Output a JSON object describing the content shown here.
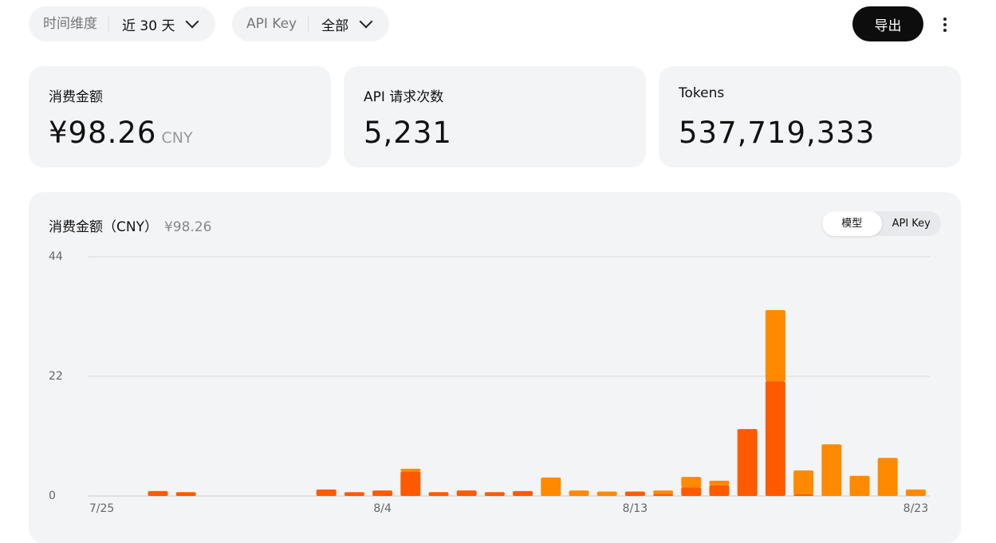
{
  "header": {
    "time_label": "时间维度",
    "time_value": "近 30 天",
    "key_label": "API Key",
    "key_value": "全部",
    "export": "导出"
  },
  "stats": [
    {
      "label": "消费金额",
      "value": "¥98.26",
      "unit": "CNY"
    },
    {
      "label": "API 请求次数",
      "value": "5,231"
    },
    {
      "label": "Tokens",
      "value": "537,719,333"
    }
  ],
  "toggle": [
    "模型",
    "API Key"
  ],
  "chart_data": {
    "type": "stacked-bar",
    "title": "消费金额（CNY）",
    "subtitle": "¥98.26",
    "categories": [
      "7/25",
      null,
      null,
      null,
      null,
      null,
      null,
      null,
      null,
      null,
      "8/4",
      null,
      null,
      null,
      null,
      null,
      null,
      null,
      null,
      "8/13",
      null,
      null,
      null,
      null,
      null,
      null,
      null,
      null,
      null,
      "8/23"
    ],
    "series": [
      {
        "color": "#ff5a00",
        "values": [
          0,
          0,
          0.9,
          0.7,
          0,
          0,
          0,
          0,
          1.2,
          0.7,
          1.0,
          4.5,
          0.7,
          1.0,
          0.7,
          0.9,
          0,
          0,
          0,
          0.8,
          0.4,
          1.6,
          2.0,
          12.3,
          21.1,
          0.3,
          0,
          0,
          0,
          0
        ]
      },
      {
        "color": "#ff8a00",
        "values": [
          0,
          0,
          0,
          0,
          0,
          0,
          0,
          0,
          0,
          0,
          0,
          0.5,
          0,
          0,
          0,
          0,
          3.4,
          1.0,
          0.8,
          0,
          0.6,
          1.9,
          0.8,
          0,
          13.1,
          4.4,
          9.5,
          3.7,
          7.0,
          1.2
        ]
      }
    ],
    "ylim": [
      0,
      44
    ],
    "yticks": [
      0,
      22,
      44
    ],
    "grid": true
  }
}
